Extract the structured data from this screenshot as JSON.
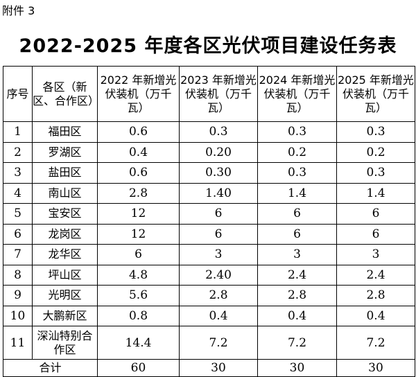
{
  "attachment": "附件 3",
  "title": "2022-2025 年度各区光伏项目建设任务表",
  "headers": {
    "seq": "序号",
    "district": "各区（新区、合作区）",
    "y2022": "2022 年新增光伏装机（万千瓦）",
    "y2023": "2023 年新增光伏装机（万千瓦）",
    "y2024": "2024 年新增光伏装机（万千瓦）",
    "y2025": "2025 年新增光伏装机（万千瓦）"
  },
  "rows": [
    {
      "seq": "1",
      "district": "福田区",
      "y2022": "0.6",
      "y2023": "0.3",
      "y2024": "0.3",
      "y2025": "0.3"
    },
    {
      "seq": "2",
      "district": "罗湖区",
      "y2022": "0.4",
      "y2023": "0.20",
      "y2024": "0.2",
      "y2025": "0.2"
    },
    {
      "seq": "3",
      "district": "盐田区",
      "y2022": "0.6",
      "y2023": "0.30",
      "y2024": "0.3",
      "y2025": "0.3"
    },
    {
      "seq": "4",
      "district": "南山区",
      "y2022": "2.8",
      "y2023": "1.40",
      "y2024": "1.4",
      "y2025": "1.4"
    },
    {
      "seq": "5",
      "district": "宝安区",
      "y2022": "12",
      "y2023": "6",
      "y2024": "6",
      "y2025": "6"
    },
    {
      "seq": "6",
      "district": "龙岗区",
      "y2022": "12",
      "y2023": "6",
      "y2024": "6",
      "y2025": "6"
    },
    {
      "seq": "7",
      "district": "龙华区",
      "y2022": "6",
      "y2023": "3",
      "y2024": "3",
      "y2025": "3"
    },
    {
      "seq": "8",
      "district": "坪山区",
      "y2022": "4.8",
      "y2023": "2.40",
      "y2024": "2.4",
      "y2025": "2.4"
    },
    {
      "seq": "9",
      "district": "光明区",
      "y2022": "5.6",
      "y2023": "2.8",
      "y2024": "2.8",
      "y2025": "2.8"
    },
    {
      "seq": "10",
      "district": "大鹏新区",
      "y2022": "0.8",
      "y2023": "0.4",
      "y2024": "0.4",
      "y2025": "0.4"
    },
    {
      "seq": "11",
      "district": "深汕特别合作区",
      "y2022": "14.4",
      "y2023": "7.2",
      "y2024": "7.2",
      "y2025": "7.2"
    }
  ],
  "total": {
    "label": "合计",
    "y2022": "60",
    "y2023": "30",
    "y2024": "30",
    "y2025": "30"
  }
}
